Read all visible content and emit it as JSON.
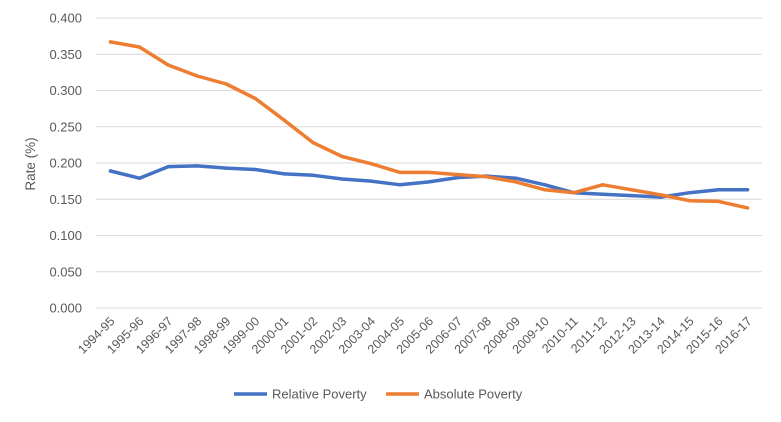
{
  "chart_data": {
    "type": "line",
    "title": "",
    "xlabel": "",
    "ylabel": "Rate (%)",
    "ylim": [
      0,
      0.4
    ],
    "ytick_step": 0.05,
    "ytick_decimals": 3,
    "grid": true,
    "legend_position": "bottom",
    "categories": [
      "1994-95",
      "1995-96",
      "1996-97",
      "1997-98",
      "1998-99",
      "1999-00",
      "2000-01",
      "2001-02",
      "2002-03",
      "2003-04",
      "2004-05",
      "2005-06",
      "2006-07",
      "2007-08",
      "2008-09",
      "2009-10",
      "2010-11",
      "2011-12",
      "2012-13",
      "2013-14",
      "2014-15",
      "2015-16",
      "2016-17"
    ],
    "series": [
      {
        "name": "Relative Poverty",
        "color": "#4472c4",
        "values": [
          0.189,
          0.179,
          0.195,
          0.196,
          0.193,
          0.191,
          0.185,
          0.183,
          0.178,
          0.175,
          0.17,
          0.174,
          0.18,
          0.182,
          0.179,
          0.17,
          0.159,
          0.157,
          0.155,
          0.153,
          0.159,
          0.163,
          0.163
        ]
      },
      {
        "name": "Absolute Poverty",
        "color": "#ed7d31",
        "values": [
          0.367,
          0.36,
          0.335,
          0.32,
          0.309,
          0.289,
          0.259,
          0.228,
          0.209,
          0.199,
          0.187,
          0.187,
          0.184,
          0.181,
          0.174,
          0.163,
          0.159,
          0.17,
          0.163,
          0.156,
          0.148,
          0.147,
          0.138
        ]
      }
    ]
  }
}
